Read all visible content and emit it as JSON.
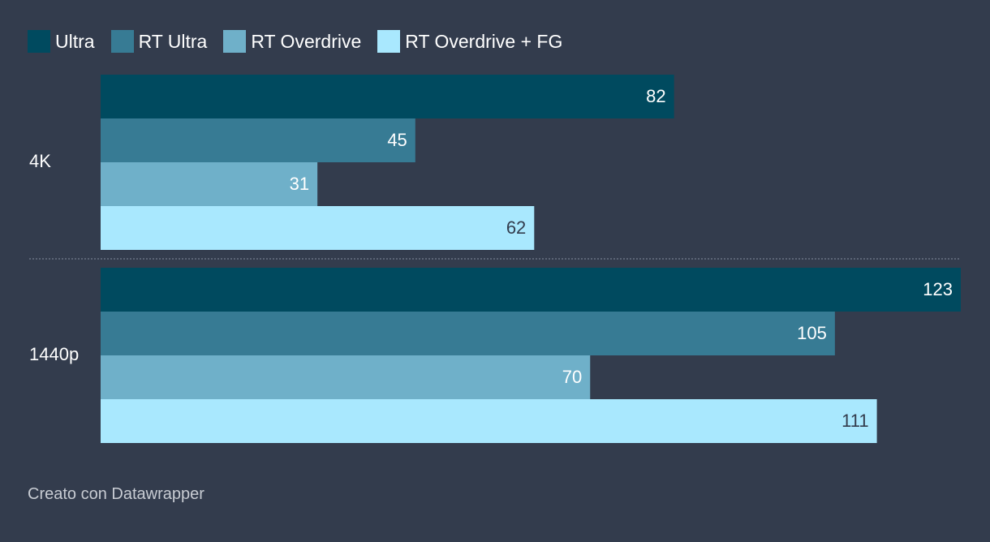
{
  "colors": {
    "background": "#333c4d",
    "separator": "#6b7384",
    "text": "#ffffff",
    "footer": "#c8ccd3"
  },
  "footer": {
    "credit": "Creato con Datawrapper"
  },
  "chart_data": {
    "type": "bar",
    "orientation": "horizontal",
    "grouped": true,
    "categories": [
      "4K",
      "1440p"
    ],
    "series": [
      {
        "name": "Ultra",
        "color": "#004a5f",
        "label_color": "#ffffff",
        "values": [
          82,
          123
        ]
      },
      {
        "name": "RT Ultra",
        "color": "#377b94",
        "label_color": "#ffffff",
        "values": [
          45,
          105
        ]
      },
      {
        "name": "RT Overdrive",
        "color": "#6fb0c9",
        "label_color": "#ffffff",
        "values": [
          31,
          70
        ]
      },
      {
        "name": "RT Overdrive + FG",
        "color": "#a9e8fe",
        "label_color": "#333c4d",
        "values": [
          62,
          111
        ]
      }
    ],
    "xlim": [
      0,
      123
    ],
    "grid": false,
    "legend_position": "top-left",
    "data_labels": true
  }
}
